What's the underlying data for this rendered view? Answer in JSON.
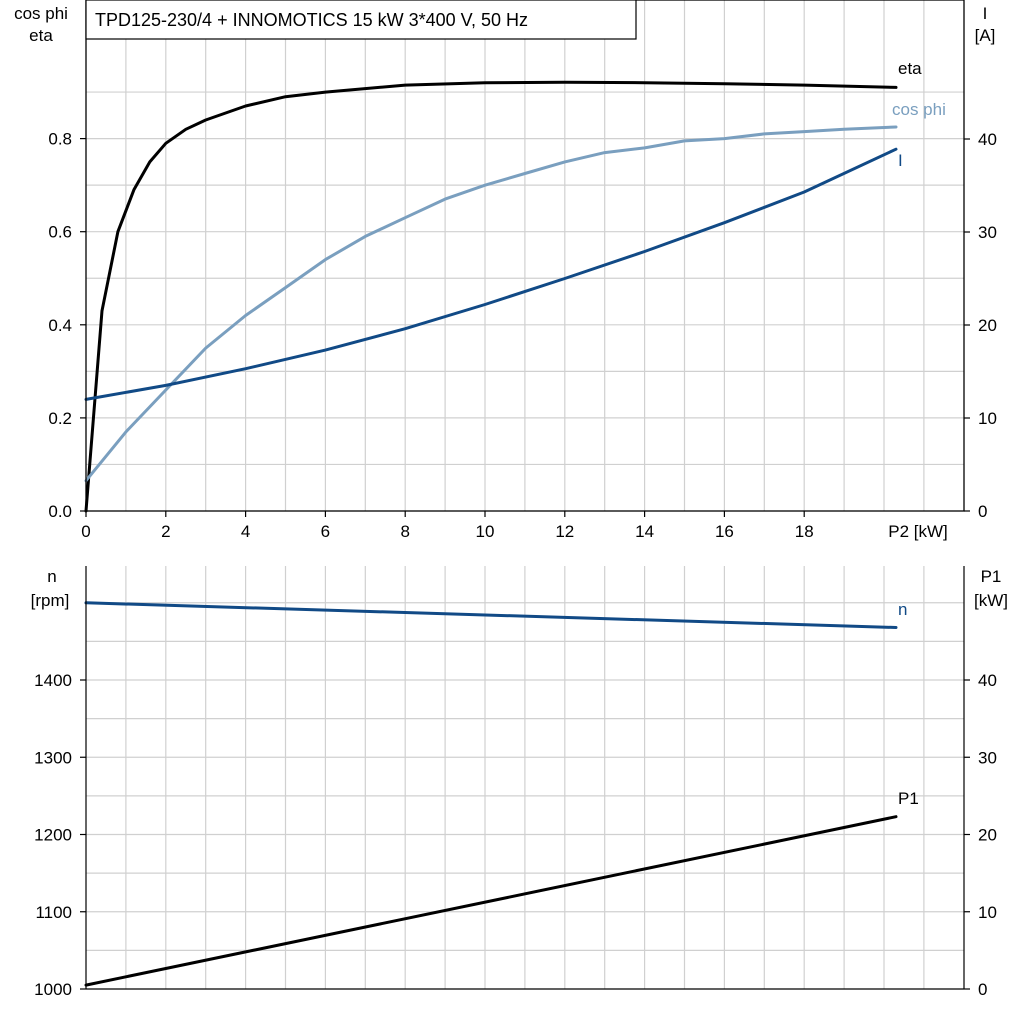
{
  "colors": {
    "eta": "#000000",
    "cos_phi": "#7a9fbf",
    "I": "#114a86",
    "n": "#114a86",
    "P1": "#000000",
    "grid": "#d0d0d0"
  },
  "title": "TPD125-230/4 + INNOMOTICS   15 kW   3*400 V, 50 Hz",
  "top_panel": {
    "left_axis_label_line1": "cos phi",
    "left_axis_label_line2": "eta",
    "right_axis_label_line1": "I",
    "right_axis_label_line2": "[A]",
    "x_axis_label": "P2 [kW]"
  },
  "bottom_panel": {
    "left_axis_label_line1": "n",
    "left_axis_label_line2": "[rpm]",
    "right_axis_label_line1": "P1",
    "right_axis_label_line2": "[kW]"
  },
  "chart_data": [
    {
      "type": "line",
      "xlabel": "P2 [kW]",
      "ylabel": "cos phi / eta",
      "y2label": "I [A]",
      "xlim": [
        0,
        22
      ],
      "ylim": [
        0,
        1.0
      ],
      "y2lim": [
        0,
        50
      ],
      "x_ticks": [
        "0",
        "2",
        "4",
        "6",
        "8",
        "10",
        "12",
        "14",
        "16",
        "18"
      ],
      "y_ticks": [
        "0.0",
        "0.2",
        "0.4",
        "0.6",
        "0.8"
      ],
      "y2_ticks": [
        "0",
        "10",
        "20",
        "30",
        "40"
      ],
      "grid": true,
      "series": [
        {
          "name": "eta",
          "axis": "left",
          "x": [
            0,
            0.4,
            0.8,
            1.2,
            1.6,
            2.0,
            2.5,
            3,
            4,
            5,
            6,
            8,
            10,
            12,
            14,
            16,
            18,
            20.3
          ],
          "values": [
            0.0,
            0.43,
            0.6,
            0.69,
            0.75,
            0.79,
            0.82,
            0.84,
            0.87,
            0.89,
            0.9,
            0.915,
            0.92,
            0.921,
            0.92,
            0.918,
            0.915,
            0.91
          ]
        },
        {
          "name": "cos phi",
          "axis": "left",
          "x": [
            0,
            1,
            2,
            3,
            4,
            5,
            6,
            7,
            8,
            9,
            10,
            11,
            12,
            13,
            14,
            15,
            16,
            17,
            18,
            19,
            20.3
          ],
          "values": [
            0.065,
            0.17,
            0.26,
            0.35,
            0.42,
            0.48,
            0.54,
            0.59,
            0.63,
            0.67,
            0.7,
            0.725,
            0.75,
            0.77,
            0.78,
            0.795,
            0.8,
            0.81,
            0.815,
            0.82,
            0.825
          ]
        },
        {
          "name": "I",
          "axis": "right",
          "x": [
            0,
            2,
            4,
            6,
            8,
            10,
            12,
            14,
            16,
            18,
            20.3
          ],
          "values": [
            12.0,
            13.5,
            15.3,
            17.3,
            19.6,
            22.2,
            25.0,
            27.9,
            31.0,
            34.3,
            38.9
          ]
        }
      ],
      "end_labels": {
        "eta": "eta",
        "cos phi": "cos phi",
        "I": "I"
      }
    },
    {
      "type": "line",
      "xlabel": "",
      "ylabel": "n [rpm]",
      "y2label": "P1 [kW]",
      "xlim": [
        0,
        22
      ],
      "ylim": [
        1000,
        1550
      ],
      "y2lim": [
        0,
        55
      ],
      "y_ticks": [
        "1000",
        "1100",
        "1200",
        "1300",
        "1400"
      ],
      "y2_ticks": [
        "0",
        "10",
        "20",
        "30",
        "40"
      ],
      "grid": true,
      "series": [
        {
          "name": "n",
          "axis": "left",
          "x": [
            0,
            20.3
          ],
          "values": [
            1500,
            1468
          ]
        },
        {
          "name": "P1",
          "axis": "right",
          "x": [
            0,
            20.3
          ],
          "values": [
            0.5,
            22.3
          ]
        }
      ],
      "end_labels": {
        "n": "n",
        "P1": "P1"
      }
    }
  ]
}
